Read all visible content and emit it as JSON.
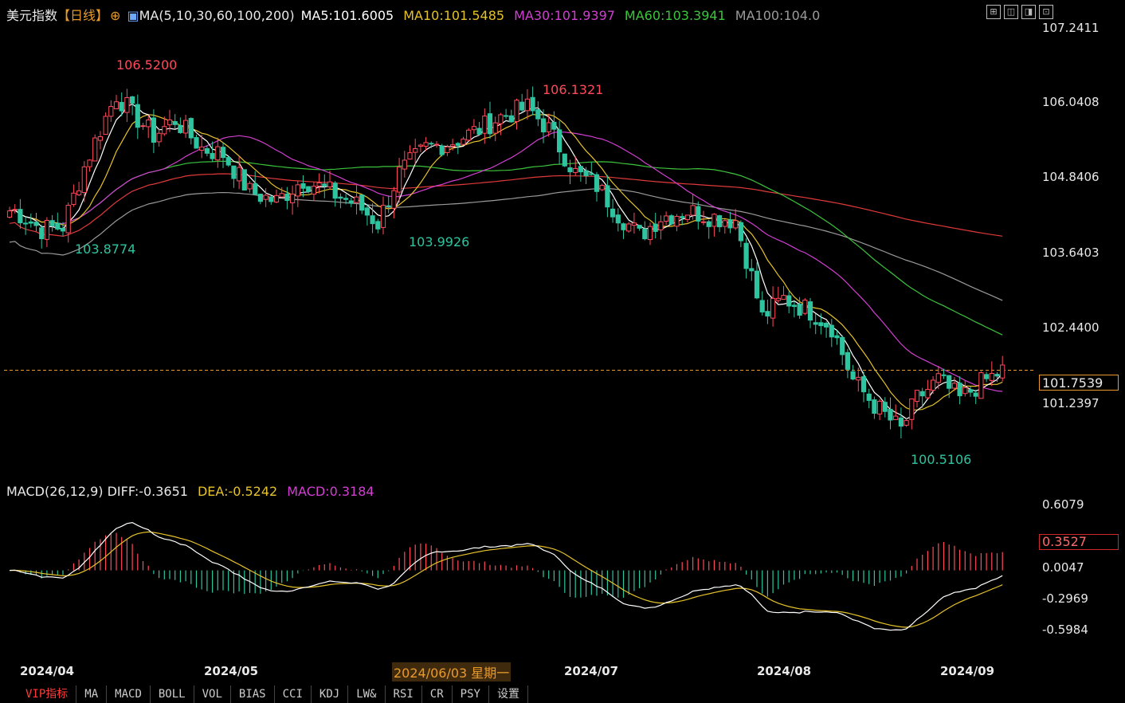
{
  "header": {
    "instrument": "美元指数",
    "period": "【日线】",
    "ma_group": "MA(5,10,30,60,100,200)",
    "ma5": "MA5:101.6005",
    "ma10": "MA10:101.5485",
    "ma30": "MA30:101.9397",
    "ma60": "MA60:103.3941",
    "ma100": "MA100:104.0"
  },
  "macd_header": {
    "label": "MACD(26,12,9)",
    "diff": "DIFF:-0.3651",
    "dea": "DEA:-0.5242",
    "macd": "MACD:0.3184"
  },
  "price_axis": [
    "107.2411",
    "106.0408",
    "104.8406",
    "103.6403",
    "102.4400",
    "101.2397"
  ],
  "macd_axis": [
    "0.6079",
    "0.0047",
    "-0.2969",
    "-0.5984"
  ],
  "current_price": "101.7539",
  "current_macd": "0.3527",
  "date_tooltip": "2024/06/03 星期一",
  "x_labels": [
    "2024/04",
    "2024/05",
    "2024/07",
    "2024/08",
    "2024/09"
  ],
  "annotations": [
    {
      "text": "106.5200",
      "type": "high"
    },
    {
      "text": "103.8774",
      "type": "low"
    },
    {
      "text": "103.9926",
      "type": "low"
    },
    {
      "text": "106.1321",
      "type": "high"
    },
    {
      "text": "100.5106",
      "type": "low"
    }
  ],
  "tabs": [
    "VIP指标",
    "MA",
    "MACD",
    "BOLL",
    "VOL",
    "BIAS",
    "CCI",
    "KDJ",
    "LW&",
    "RSI",
    "CR",
    "PSY",
    "设置"
  ],
  "colors": {
    "up": "#ff4a5a",
    "down": "#2ec4a0",
    "ma5": "#ffffff",
    "ma10": "#e6c229",
    "ma30": "#d13fd1",
    "ma60": "#3cc43c",
    "ma100": "#9a9a9a",
    "ma200": "#e03a3a",
    "accent": "#e89a2a"
  },
  "chart_data": {
    "type": "candlestick",
    "title": "美元指数 日线",
    "ylim": [
      100.3,
      107.3
    ],
    "x_ticks": [
      "2024/04",
      "2024/05",
      "2024/07",
      "2024/08",
      "2024/09"
    ],
    "anchors": [
      {
        "i": 1,
        "c": 104.3
      },
      {
        "i": 6,
        "c": 104.0
      },
      {
        "i": 10,
        "c": 104.05
      },
      {
        "i": 14,
        "c": 105.0
      },
      {
        "i": 17,
        "c": 105.6
      },
      {
        "i": 20,
        "c": 106.15
      },
      {
        "i": 23,
        "c": 105.85
      },
      {
        "i": 27,
        "c": 105.5
      },
      {
        "i": 31,
        "c": 105.75
      },
      {
        "i": 36,
        "c": 105.3
      },
      {
        "i": 40,
        "c": 105.2
      },
      {
        "i": 45,
        "c": 104.6
      },
      {
        "i": 50,
        "c": 104.45
      },
      {
        "i": 55,
        "c": 104.8
      },
      {
        "i": 60,
        "c": 104.6
      },
      {
        "i": 65,
        "c": 104.4
      },
      {
        "i": 69,
        "c": 104.1
      },
      {
        "i": 73,
        "c": 104.9
      },
      {
        "i": 78,
        "c": 105.3
      },
      {
        "i": 83,
        "c": 105.4
      },
      {
        "i": 88,
        "c": 105.6
      },
      {
        "i": 92,
        "c": 105.8
      },
      {
        "i": 97,
        "c": 105.95
      },
      {
        "i": 101,
        "c": 105.6
      },
      {
        "i": 106,
        "c": 104.9
      },
      {
        "i": 110,
        "c": 104.7
      },
      {
        "i": 114,
        "c": 104.25
      },
      {
        "i": 118,
        "c": 103.9
      },
      {
        "i": 122,
        "c": 104.2
      },
      {
        "i": 127,
        "c": 104.3
      },
      {
        "i": 132,
        "c": 104.2
      },
      {
        "i": 136,
        "c": 104.15
      },
      {
        "i": 139,
        "c": 103.25
      },
      {
        "i": 141,
        "c": 102.6
      },
      {
        "i": 145,
        "c": 102.9
      },
      {
        "i": 150,
        "c": 102.7
      },
      {
        "i": 154,
        "c": 102.45
      },
      {
        "i": 158,
        "c": 101.6
      },
      {
        "i": 162,
        "c": 101.2
      },
      {
        "i": 167,
        "c": 100.8
      },
      {
        "i": 170,
        "c": 101.3
      },
      {
        "i": 174,
        "c": 101.6
      },
      {
        "i": 178,
        "c": 101.3
      },
      {
        "i": 182,
        "c": 101.55
      },
      {
        "i": 186,
        "c": 101.75
      }
    ],
    "high_annotations": [
      {
        "value": 106.52
      },
      {
        "value": 106.1321
      }
    ],
    "low_annotations": [
      {
        "value": 103.8774
      },
      {
        "value": 103.9926
      },
      {
        "value": 100.5106
      }
    ],
    "last_price": 101.7539,
    "ma_last": {
      "MA5": 101.6005,
      "MA10": 101.5485,
      "MA30": 101.9397,
      "MA60": 103.3941,
      "MA100": 104.0
    },
    "macd": {
      "params": "26,12,9",
      "diff": -0.3651,
      "dea": -0.5242,
      "macd": 0.3184,
      "ylim": [
        -0.68,
        0.65
      ]
    }
  }
}
